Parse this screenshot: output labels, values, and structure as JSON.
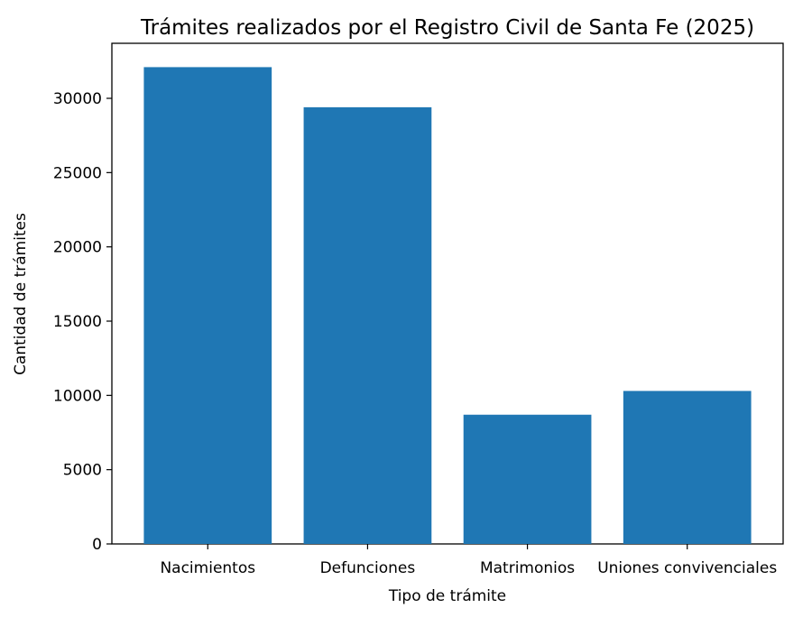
{
  "chart_data": {
    "type": "bar",
    "title": "Trámites realizados por el Registro Civil de Santa Fe (2025)",
    "xlabel": "Tipo de trámite",
    "ylabel": "Cantidad de trámites",
    "categories": [
      "Nacimientos",
      "Defunciones",
      "Matrimonios",
      "Uniones convivenciales"
    ],
    "values": [
      32100,
      29400,
      8700,
      10300
    ],
    "ylim": [
      0,
      33705
    ],
    "yticks": [
      0,
      5000,
      10000,
      15000,
      20000,
      25000,
      30000
    ],
    "grid": false,
    "legend": "none",
    "bar_color": "#1f77b4"
  }
}
